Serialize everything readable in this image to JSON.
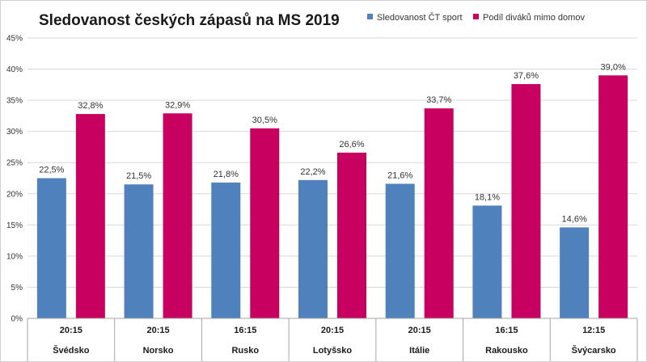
{
  "chart_data": {
    "type": "bar",
    "title": "Sledovanost českých zápasů na MS 2019",
    "xlabel": "",
    "ylabel": "",
    "ylim": [
      0,
      45
    ],
    "yticks": [
      0,
      5,
      10,
      15,
      20,
      25,
      30,
      35,
      40,
      45
    ],
    "ytick_labels": [
      "0%",
      "5%",
      "10%",
      "15%",
      "20%",
      "25%",
      "30%",
      "35%",
      "40%",
      "45%"
    ],
    "grid": true,
    "legend_position": "top-right",
    "categories": [
      "Švédsko",
      "Norsko",
      "Rusko",
      "Lotyšsko",
      "Itálie",
      "Rakousko",
      "Švýcarsko"
    ],
    "times": [
      "20:15",
      "20:15",
      "16:15",
      "20:15",
      "20:15",
      "16:15",
      "12:15"
    ],
    "series": [
      {
        "name": "Sledovanost ČT sport",
        "color": "#4f81bd",
        "values": [
          22.5,
          21.5,
          21.8,
          22.2,
          21.6,
          18.1,
          14.6
        ],
        "labels": [
          "22,5%",
          "21,5%",
          "21,8%",
          "22,2%",
          "21,6%",
          "18,1%",
          "14,6%"
        ]
      },
      {
        "name": "Podíl diváků mimo domov",
        "color": "#c8005f",
        "values": [
          32.8,
          32.9,
          30.5,
          26.6,
          33.7,
          37.6,
          39.0
        ],
        "labels": [
          "32,8%",
          "32,9%",
          "30,5%",
          "26,6%",
          "33,7%",
          "37,6%",
          "39,0%"
        ]
      }
    ]
  }
}
